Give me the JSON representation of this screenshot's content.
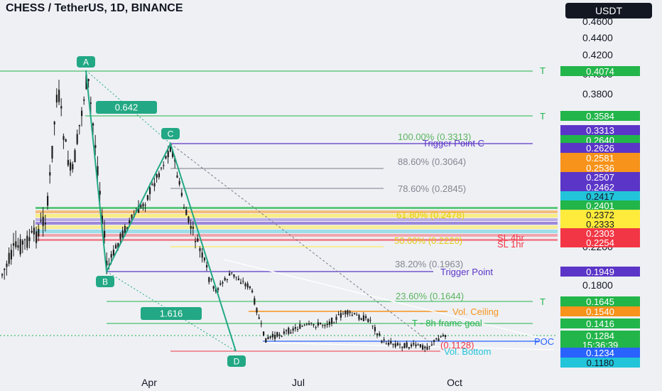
{
  "header": {
    "title": "CHESS / TetherUS, 1D, BINANCE",
    "currency_button": "USDT"
  },
  "colors": {
    "bg": "#eef0f4",
    "up": "#1e1e1e",
    "down": "#1e1e1e",
    "pattern": "#22a884",
    "purple": "#5b35c7",
    "green": "#22b54a",
    "orange": "#f7931a",
    "yellow": "#ffeb3b",
    "red": "#f23645",
    "cyan": "#22c4d9",
    "blue": "#2962ff",
    "gray": "#787b86"
  },
  "chart_data": {
    "type": "candlestick",
    "title": "CHESS / TetherUS, 1D, BINANCE",
    "y_ticks": [
      "0.4600",
      "0.4400",
      "0.4200",
      "0.4000",
      "0.3800",
      "0.2200",
      "0.1800"
    ],
    "x_ticks": [
      "Apr",
      "Jul",
      "Oct"
    ],
    "price_tags": [
      {
        "text": "0.4074",
        "bg": "green"
      },
      {
        "text": "0.3584",
        "bg": "green"
      },
      {
        "text": "0.3313",
        "bg": "purple"
      },
      {
        "text": "0.2640",
        "bg": "green"
      },
      {
        "text": "0.2626",
        "bg": "purple"
      },
      {
        "text": "0.2581",
        "bg": "orange"
      },
      {
        "text": "0.2536",
        "bg": "orange"
      },
      {
        "text": "0.2507",
        "bg": "purple"
      },
      {
        "text": "0.2462",
        "bg": "purple"
      },
      {
        "text": "0.2417",
        "bg": "cyan"
      },
      {
        "text": "0.2401",
        "bg": "green"
      },
      {
        "text": "0.2372",
        "bg": "yellow"
      },
      {
        "text": "0.2333",
        "bg": "yellow"
      },
      {
        "text": "0.2303",
        "bg": "red"
      },
      {
        "text": "0.2254",
        "bg": "red"
      },
      {
        "text": "0.1949",
        "bg": "purple"
      },
      {
        "text": "0.1645",
        "bg": "green"
      },
      {
        "text": "0.1540",
        "bg": "orange"
      },
      {
        "text": "0.1416",
        "bg": "green"
      },
      {
        "text": "0.1284",
        "bg": "green"
      },
      {
        "text": "15:36:39",
        "bg": "green"
      },
      {
        "text": "0.1234",
        "bg": "blue"
      },
      {
        "text": "0.1180",
        "bg": "cyan"
      }
    ],
    "pattern_points": [
      {
        "label": "A",
        "price": 0.4074
      },
      {
        "label": "B",
        "price": 0.1952
      },
      {
        "label": "C",
        "price": 0.264
      },
      {
        "label": "D",
        "price": 0.1234
      }
    ],
    "ratio_labels": [
      "0.642",
      "1.616"
    ],
    "fib_labels": [
      "100.00% (0.3313)",
      "88.60% (0.3064)",
      "78.60% (0.2845)",
      "61.80% (0.2478)",
      "50.00% (0.2220)",
      "38.20% (0.1963)",
      "23.60% (0.1644)"
    ],
    "annotations": [
      {
        "text": "T",
        "color": "green"
      },
      {
        "text": "T",
        "color": "green"
      },
      {
        "text": "Trigger Point C",
        "color": "purple"
      },
      {
        "text": "Trigger Point",
        "color": "purple"
      },
      {
        "text": "T",
        "color": "green"
      },
      {
        "text": "Vol. Ceiling",
        "color": "orange"
      },
      {
        "text": "T - 8h frame goal",
        "color": "green"
      },
      {
        "text": "POC",
        "color": "blue"
      },
      {
        "text": "(0.1128)",
        "color": "red"
      },
      {
        "text": "Vol. Bottom",
        "color": "cyan"
      },
      {
        "text": "SL 4hr",
        "color": "red"
      },
      {
        "text": "SL 1hr",
        "color": "red"
      }
    ]
  }
}
